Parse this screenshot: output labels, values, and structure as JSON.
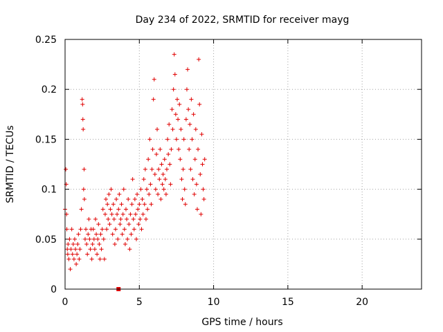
{
  "chart_data": {
    "type": "scatter",
    "title": "Day 234 of 2022, SRMTID for receiver mayg",
    "xlabel": "GPS time / hours",
    "ylabel": "SRMTID / TECUs",
    "xlim": [
      0,
      24
    ],
    "ylim": [
      0,
      0.25
    ],
    "xticks": [
      0,
      5,
      10,
      15,
      20
    ],
    "xtick_labels": [
      "0",
      "5",
      "10",
      "15",
      "20"
    ],
    "yticks": [
      0,
      0.05,
      0.1,
      0.15,
      0.2,
      0.25
    ],
    "ytick_labels": [
      "0",
      "0.05",
      "0.1",
      "0.15",
      "0.2",
      "0.25"
    ],
    "grid": true,
    "marker": "+",
    "color": "#e00000",
    "zero_marker": {
      "x": 3.6,
      "y": 0.0
    },
    "series": [
      {
        "name": "SRMTID",
        "points": [
          [
            0.0,
            0.08
          ],
          [
            0.05,
            0.12
          ],
          [
            0.08,
            0.105
          ],
          [
            0.1,
            0.075
          ],
          [
            0.12,
            0.06
          ],
          [
            0.15,
            0.04
          ],
          [
            0.18,
            0.035
          ],
          [
            0.2,
            0.045
          ],
          [
            0.25,
            0.03
          ],
          [
            0.3,
            0.05
          ],
          [
            0.35,
            0.02
          ],
          [
            0.4,
            0.04
          ],
          [
            0.45,
            0.06
          ],
          [
            0.5,
            0.035
          ],
          [
            0.55,
            0.045
          ],
          [
            0.6,
            0.03
          ],
          [
            0.65,
            0.05
          ],
          [
            0.7,
            0.04
          ],
          [
            0.75,
            0.025
          ],
          [
            0.8,
            0.035
          ],
          [
            0.85,
            0.045
          ],
          [
            0.9,
            0.055
          ],
          [
            0.95,
            0.03
          ],
          [
            1.0,
            0.04
          ],
          [
            1.05,
            0.06
          ],
          [
            1.1,
            0.08
          ],
          [
            1.15,
            0.19
          ],
          [
            1.18,
            0.185
          ],
          [
            1.2,
            0.17
          ],
          [
            1.22,
            0.16
          ],
          [
            1.25,
            0.1
          ],
          [
            1.28,
            0.12
          ],
          [
            1.3,
            0.09
          ],
          [
            1.35,
            0.05
          ],
          [
            1.4,
            0.06
          ],
          [
            1.45,
            0.045
          ],
          [
            1.5,
            0.035
          ],
          [
            1.55,
            0.055
          ],
          [
            1.6,
            0.07
          ],
          [
            1.65,
            0.05
          ],
          [
            1.7,
            0.04
          ],
          [
            1.75,
            0.06
          ],
          [
            1.8,
            0.03
          ],
          [
            1.85,
            0.045
          ],
          [
            1.9,
            0.06
          ],
          [
            1.95,
            0.05
          ],
          [
            2.0,
            0.04
          ],
          [
            2.05,
            0.07
          ],
          [
            2.1,
            0.055
          ],
          [
            2.15,
            0.035
          ],
          [
            2.2,
            0.05
          ],
          [
            2.25,
            0.065
          ],
          [
            2.3,
            0.045
          ],
          [
            2.35,
            0.03
          ],
          [
            2.4,
            0.055
          ],
          [
            2.45,
            0.04
          ],
          [
            2.5,
            0.06
          ],
          [
            2.55,
            0.08
          ],
          [
            2.6,
            0.05
          ],
          [
            2.65,
            0.03
          ],
          [
            2.7,
            0.075
          ],
          [
            2.75,
            0.09
          ],
          [
            2.8,
            0.06
          ],
          [
            2.85,
            0.085
          ],
          [
            2.9,
            0.07
          ],
          [
            2.95,
            0.095
          ],
          [
            3.0,
            0.065
          ],
          [
            3.05,
            0.08
          ],
          [
            3.1,
            0.1
          ],
          [
            3.15,
            0.075
          ],
          [
            3.2,
            0.055
          ],
          [
            3.25,
            0.085
          ],
          [
            3.3,
            0.07
          ],
          [
            3.35,
            0.045
          ],
          [
            3.4,
            0.06
          ],
          [
            3.45,
            0.09
          ],
          [
            3.5,
            0.075
          ],
          [
            3.55,
            0.05
          ],
          [
            3.6,
            0.08
          ],
          [
            3.65,
            0.095
          ],
          [
            3.7,
            0.065
          ],
          [
            3.75,
            0.07
          ],
          [
            3.8,
            0.085
          ],
          [
            3.85,
            0.055
          ],
          [
            3.9,
            0.075
          ],
          [
            3.95,
            0.1
          ],
          [
            4.0,
            0.06
          ],
          [
            4.05,
            0.045
          ],
          [
            4.1,
            0.08
          ],
          [
            4.15,
            0.07
          ],
          [
            4.2,
            0.05
          ],
          [
            4.25,
            0.09
          ],
          [
            4.3,
            0.065
          ],
          [
            4.35,
            0.04
          ],
          [
            4.4,
            0.075
          ],
          [
            4.45,
            0.055
          ],
          [
            4.5,
            0.085
          ],
          [
            4.55,
            0.11
          ],
          [
            4.6,
            0.07
          ],
          [
            4.65,
            0.06
          ],
          [
            4.7,
            0.09
          ],
          [
            4.75,
            0.075
          ],
          [
            4.8,
            0.05
          ],
          [
            4.85,
            0.095
          ],
          [
            4.9,
            0.08
          ],
          [
            4.95,
            0.065
          ],
          [
            5.0,
            0.085
          ],
          [
            5.05,
            0.07
          ],
          [
            5.1,
            0.1
          ],
          [
            5.15,
            0.06
          ],
          [
            5.2,
            0.09
          ],
          [
            5.25,
            0.075
          ],
          [
            5.3,
            0.11
          ],
          [
            5.35,
            0.085
          ],
          [
            5.4,
            0.12
          ],
          [
            5.45,
            0.07
          ],
          [
            5.5,
            0.1
          ],
          [
            5.55,
            0.08
          ],
          [
            5.6,
            0.13
          ],
          [
            5.65,
            0.095
          ],
          [
            5.7,
            0.15
          ],
          [
            5.75,
            0.105
          ],
          [
            5.8,
            0.085
          ],
          [
            5.85,
            0.12
          ],
          [
            5.9,
            0.14
          ],
          [
            5.95,
            0.19
          ],
          [
            6.0,
            0.21
          ],
          [
            6.05,
            0.115
          ],
          [
            6.1,
            0.1
          ],
          [
            6.15,
            0.135
          ],
          [
            6.2,
            0.16
          ],
          [
            6.25,
            0.095
          ],
          [
            6.3,
            0.12
          ],
          [
            6.35,
            0.11
          ],
          [
            6.4,
            0.14
          ],
          [
            6.45,
            0.09
          ],
          [
            6.5,
            0.125
          ],
          [
            6.55,
            0.105
          ],
          [
            6.6,
            0.115
          ],
          [
            6.65,
            0.1
          ],
          [
            6.7,
            0.13
          ],
          [
            6.75,
            0.11
          ],
          [
            6.8,
            0.095
          ],
          [
            6.85,
            0.12
          ],
          [
            6.9,
            0.15
          ],
          [
            6.95,
            0.135
          ],
          [
            7.0,
            0.165
          ],
          [
            7.05,
            0.125
          ],
          [
            7.1,
            0.105
          ],
          [
            7.15,
            0.14
          ],
          [
            7.2,
            0.18
          ],
          [
            7.25,
            0.16
          ],
          [
            7.3,
            0.2
          ],
          [
            7.35,
            0.235
          ],
          [
            7.4,
            0.215
          ],
          [
            7.45,
            0.175
          ],
          [
            7.5,
            0.15
          ],
          [
            7.55,
            0.19
          ],
          [
            7.6,
            0.17
          ],
          [
            7.65,
            0.14
          ],
          [
            7.7,
            0.185
          ],
          [
            7.75,
            0.13
          ],
          [
            7.8,
            0.16
          ],
          [
            7.85,
            0.11
          ],
          [
            7.9,
            0.09
          ],
          [
            7.95,
            0.12
          ],
          [
            8.0,
            0.15
          ],
          [
            8.05,
            0.1
          ],
          [
            8.1,
            0.085
          ],
          [
            8.15,
            0.17
          ],
          [
            8.2,
            0.2
          ],
          [
            8.25,
            0.22
          ],
          [
            8.3,
            0.18
          ],
          [
            8.35,
            0.14
          ],
          [
            8.4,
            0.165
          ],
          [
            8.45,
            0.12
          ],
          [
            8.5,
            0.19
          ],
          [
            8.55,
            0.15
          ],
          [
            8.6,
            0.11
          ],
          [
            8.65,
            0.175
          ],
          [
            8.7,
            0.095
          ],
          [
            8.75,
            0.13
          ],
          [
            8.8,
            0.16
          ],
          [
            8.85,
            0.105
          ],
          [
            8.9,
            0.08
          ],
          [
            8.95,
            0.14
          ],
          [
            9.0,
            0.23
          ],
          [
            9.05,
            0.185
          ],
          [
            9.1,
            0.115
          ],
          [
            9.15,
            0.075
          ],
          [
            9.2,
            0.155
          ],
          [
            9.25,
            0.125
          ],
          [
            9.3,
            0.1
          ],
          [
            9.35,
            0.09
          ],
          [
            9.4,
            0.13
          ]
        ]
      }
    ]
  }
}
